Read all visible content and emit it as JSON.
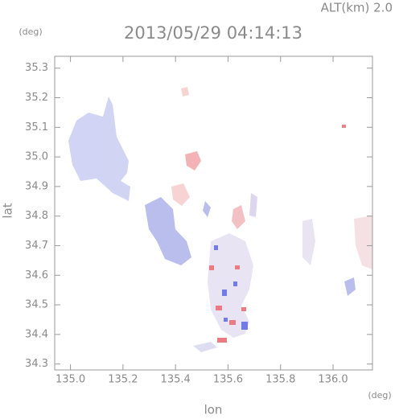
{
  "chart_data": {
    "type": "map",
    "title": "2013/05/29 04:14:13",
    "subtitle": "ALT(km) 2.0",
    "xlabel": "lon",
    "ylabel": "lat",
    "xunit": "(deg)",
    "yunit": "(deg)",
    "xlim": [
      134.94,
      136.15
    ],
    "ylim": [
      34.28,
      35.34
    ],
    "xticks": [
      {
        "value": 135,
        "label": "135.0"
      },
      135.2,
      135.4,
      135.6,
      135.8,
      {
        "value": 136,
        "label": "136.0"
      }
    ],
    "yticks": [
      34.3,
      34.4,
      34.5,
      34.6,
      34.7,
      34.8,
      34.9,
      {
        "value": 35,
        "label": "35.0"
      },
      35.1,
      35.2,
      35.3
    ]
  }
}
